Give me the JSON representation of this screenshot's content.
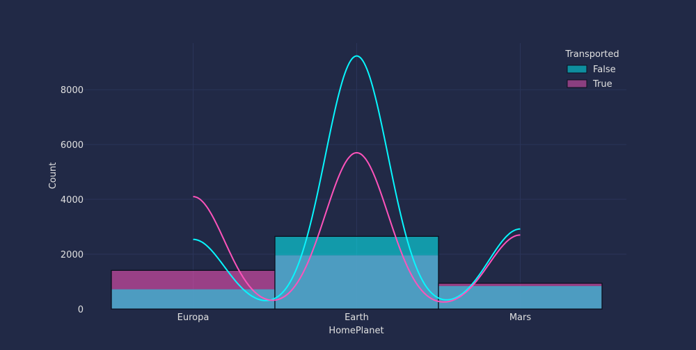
{
  "chart_data": {
    "type": "histogram",
    "xlabel": "HomePlanet",
    "ylabel": "Count",
    "categories": [
      "Europa",
      "Earth",
      "Mars"
    ],
    "ylim": [
      0,
      9700
    ],
    "yticks": [
      0,
      2000,
      4000,
      6000,
      8000
    ],
    "grid": true,
    "stacked": true,
    "legend": {
      "title": "Transported",
      "position": "top-right"
    },
    "series": [
      {
        "name": "False",
        "color": "#08f7fe",
        "values": [
          720,
          1960,
          840
        ],
        "kde_peaks": [
          2540,
          9230,
          2920
        ]
      },
      {
        "name": "True",
        "color": "#fe53bb",
        "values": [
          690,
          690,
          100
        ],
        "kde_peaks": [
          4100,
          5700,
          2700
        ]
      }
    ],
    "colors": {
      "background": "#212946",
      "grid": "#2a3459",
      "text": "#e0e0e0",
      "overlap": "#50a2c8"
    }
  }
}
